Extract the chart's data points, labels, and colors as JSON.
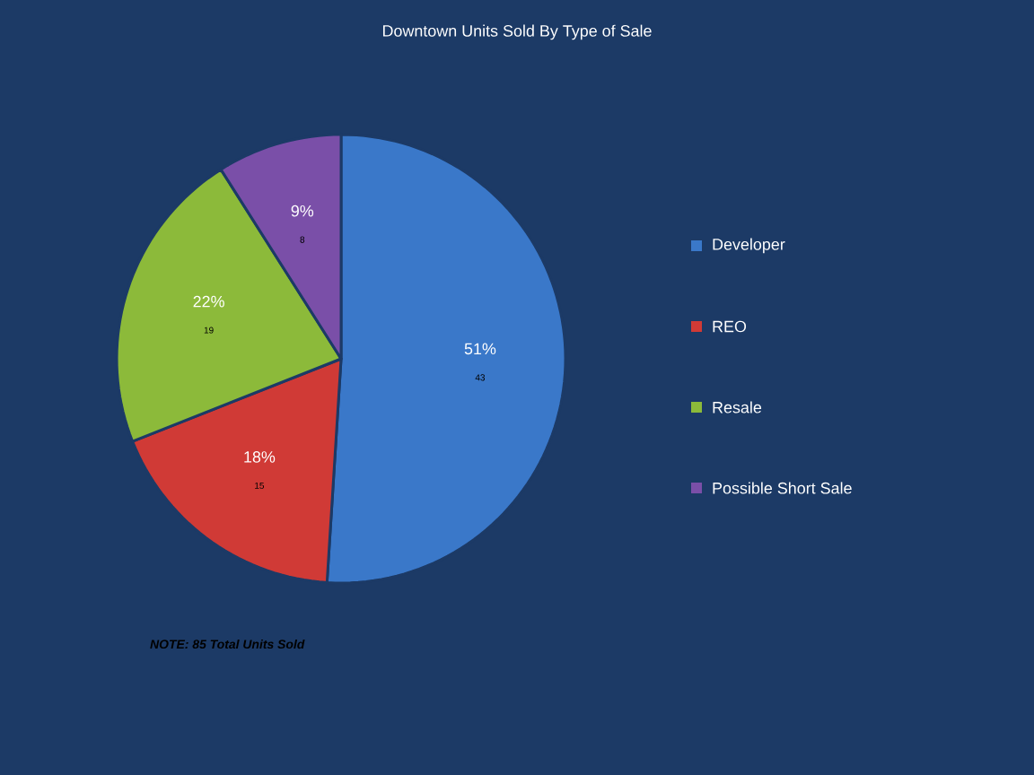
{
  "chart_data": {
    "type": "pie",
    "title": "Downtown Units Sold By Type of Sale",
    "categories": [
      "Developer",
      "REO",
      "Resale",
      "Possible Short Sale"
    ],
    "values": [
      51,
      18,
      22,
      9
    ],
    "value_labels": [
      "51%",
      "18%",
      "22%",
      "9%"
    ],
    "colors": [
      "#3a78c9",
      "#d03a36",
      "#8cba3a",
      "#7a4fa8"
    ],
    "legend": "right",
    "annotations": [
      {
        "text": "43",
        "x": "Developer"
      },
      {
        "text": "15",
        "x": "REO"
      },
      {
        "text": "19",
        "x": "Resale"
      },
      {
        "text": "8",
        "x": "Possible Short Sale"
      },
      "NOTE:   85 Total Units Sold"
    ]
  }
}
